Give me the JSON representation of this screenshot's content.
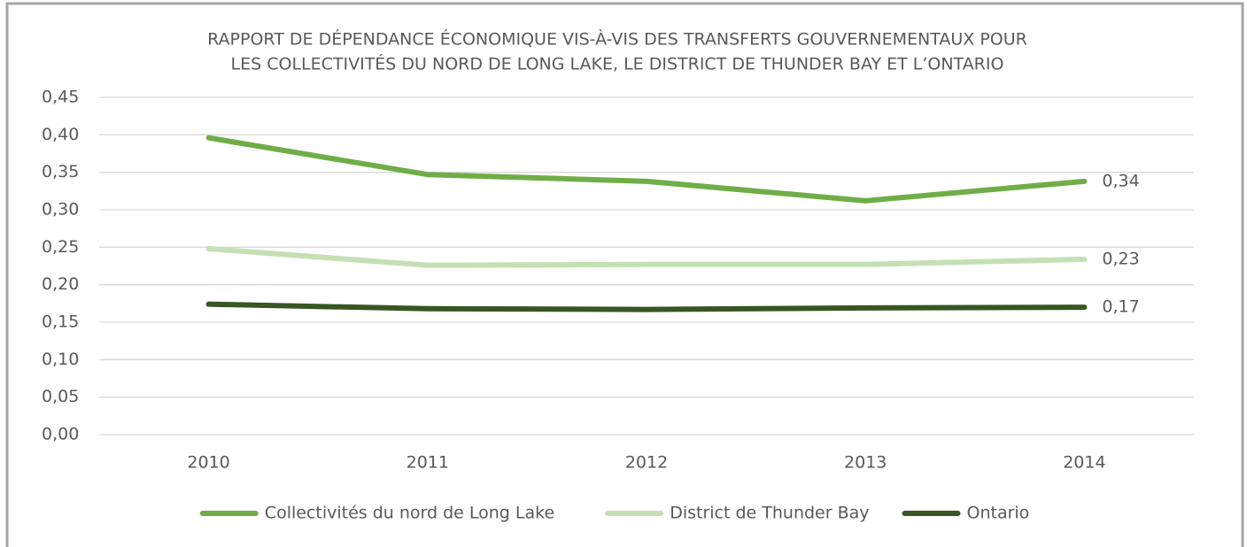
{
  "chart_data": {
    "type": "line",
    "title": [
      "RAPPORT DE DÉPENDANCE ÉCONOMIQUE VIS-À-VIS DES TRANSFERTS GOUVERNEMENTAUX POUR",
      "LES COLLECTIVITÉS DU NORD DE LONG LAKE, LE DISTRICT DE THUNDER BAY ET L’ONTARIO"
    ],
    "categories": [
      "2010",
      "2011",
      "2012",
      "2013",
      "2014"
    ],
    "series": [
      {
        "name": "Collectivités du nord de Long Lake",
        "color": "#70ad47",
        "values": [
          0.396,
          0.347,
          0.338,
          0.312,
          0.338
        ],
        "value_labels": [
          null,
          null,
          null,
          null,
          "0,34"
        ]
      },
      {
        "name": "District de Thunder Bay",
        "color": "#c5e0b4",
        "values": [
          0.248,
          0.226,
          0.227,
          0.227,
          0.234
        ],
        "value_labels": [
          null,
          null,
          null,
          null,
          "0,23"
        ]
      },
      {
        "name": "Ontario",
        "color": "#375623",
        "values": [
          0.174,
          0.168,
          0.167,
          0.169,
          0.17
        ],
        "value_labels": [
          null,
          null,
          null,
          null,
          "0,17"
        ]
      }
    ],
    "ylim": [
      0,
      0.45
    ],
    "yticks": [
      {
        "value": 0,
        "label": "0,00"
      },
      {
        "value": 0.05,
        "label": "0,05"
      },
      {
        "value": 0.1,
        "label": "0,10"
      },
      {
        "value": 0.15,
        "label": "0,15"
      },
      {
        "value": 0.2,
        "label": "0,20"
      },
      {
        "value": 0.25,
        "label": "0,25"
      },
      {
        "value": 0.3,
        "label": "0,30"
      },
      {
        "value": 0.35,
        "label": "0,35"
      },
      {
        "value": 0.4,
        "label": "0,40"
      },
      {
        "value": 0.45,
        "label": "0,45"
      }
    ],
    "grid": true,
    "legend": "bottom"
  }
}
